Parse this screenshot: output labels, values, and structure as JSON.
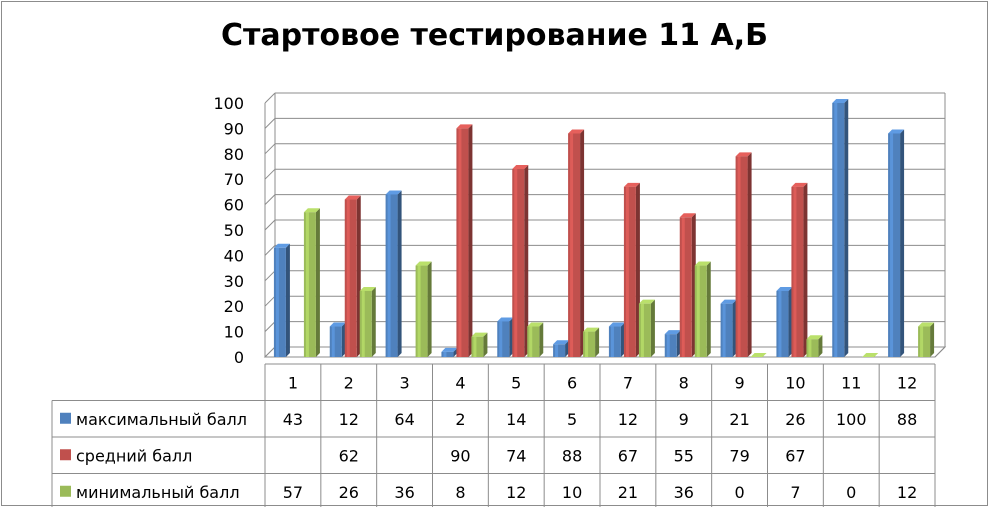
{
  "chart_data": {
    "type": "bar",
    "title": "Стартовое тестирование 11 А,Б",
    "xlabel": "",
    "ylabel": "",
    "ylim": [
      0,
      100
    ],
    "y_ticks": [
      0,
      10,
      20,
      30,
      40,
      50,
      60,
      70,
      80,
      90,
      100
    ],
    "grid": true,
    "legend": "data-table",
    "categories": [
      "1",
      "2",
      "3",
      "4",
      "5",
      "6",
      "7",
      "8",
      "9",
      "10",
      "11",
      "12"
    ],
    "series": [
      {
        "name": "максимальный балл",
        "color": "#4F81BD",
        "values": [
          43,
          12,
          64,
          2,
          14,
          5,
          12,
          9,
          21,
          26,
          100,
          88
        ]
      },
      {
        "name": "средний балл",
        "color": "#C0504D",
        "values": [
          null,
          62,
          null,
          90,
          74,
          88,
          67,
          55,
          79,
          67,
          null,
          null
        ]
      },
      {
        "name": "минимальный балл",
        "color": "#9BBB59",
        "values": [
          57,
          26,
          36,
          8,
          12,
          10,
          21,
          36,
          0,
          7,
          0,
          12
        ]
      }
    ]
  }
}
